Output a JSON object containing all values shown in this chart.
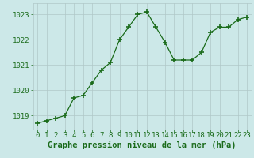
{
  "x": [
    0,
    1,
    2,
    3,
    4,
    5,
    6,
    7,
    8,
    9,
    10,
    11,
    12,
    13,
    14,
    15,
    16,
    17,
    18,
    19,
    20,
    21,
    22,
    23
  ],
  "y": [
    1018.7,
    1018.8,
    1018.9,
    1019.0,
    1019.7,
    1019.8,
    1020.3,
    1020.8,
    1021.1,
    1022.0,
    1022.5,
    1023.0,
    1023.1,
    1022.5,
    1021.9,
    1021.2,
    1021.2,
    1021.2,
    1021.5,
    1022.3,
    1022.5,
    1022.5,
    1022.8,
    1022.9
  ],
  "line_color": "#1a6b1a",
  "marker": "+",
  "marker_color": "#1a6b1a",
  "marker_size": 4,
  "marker_linewidth": 1.2,
  "bg_color": "#cce8e8",
  "grid_color": "#b0c8c8",
  "xlabel": "Graphe pression niveau de la mer (hPa)",
  "xlabel_color": "#1a6b1a",
  "xlabel_fontsize": 7.5,
  "tick_color": "#1a6b1a",
  "tick_fontsize": 6.5,
  "yticks": [
    1019,
    1020,
    1021,
    1022,
    1023
  ],
  "xtick_labels": [
    "0",
    "1",
    "2",
    "3",
    "4",
    "5",
    "6",
    "7",
    "8",
    "9",
    "10",
    "11",
    "12",
    "13",
    "14",
    "15",
    "16",
    "17",
    "18",
    "19",
    "20",
    "21",
    "22",
    "23"
  ],
  "ylim": [
    1018.45,
    1023.45
  ],
  "xlim": [
    -0.5,
    23.5
  ],
  "linewidth": 0.9
}
